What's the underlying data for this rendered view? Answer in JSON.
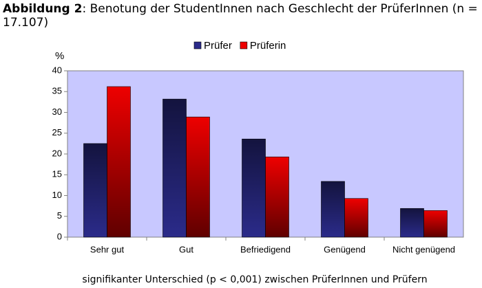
{
  "chart_data": {
    "type": "bar",
    "figure_label": "Abbildung 2",
    "title": ": Benotung der StudentInnen nach Geschlecht der PrüferInnen (n =",
    "title_continued": "17.107)",
    "y_label": "%",
    "note": "signifikanter Unterschied (p < 0,001) zwischen PrüferInnen und Prüfern",
    "categories": [
      "Sehr gut",
      "Gut",
      "Befriedigend",
      "Genügend",
      "Nicht genügend"
    ],
    "series": [
      {
        "name": "Prüfer",
        "color": "#2b2b8a",
        "values": [
          22.5,
          33.2,
          23.6,
          13.4,
          6.9
        ]
      },
      {
        "name": "Prüferin",
        "color": "#ee0000",
        "values": [
          36.2,
          28.9,
          19.3,
          9.3,
          6.4
        ]
      }
    ],
    "ylim": [
      0,
      40
    ],
    "yticks": [
      0,
      5,
      10,
      15,
      20,
      25,
      30,
      35,
      40
    ],
    "grid": false,
    "legend": "top"
  }
}
